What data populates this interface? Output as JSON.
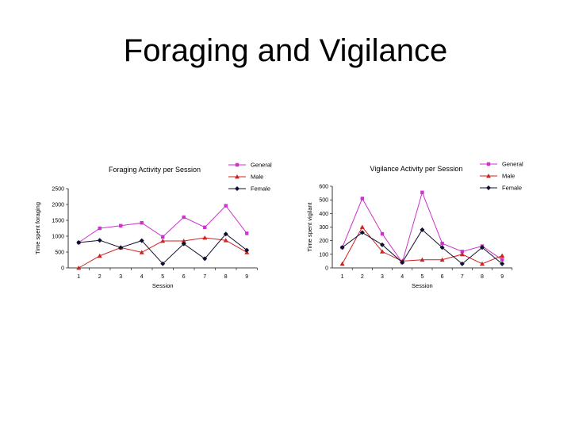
{
  "slide": {
    "title": "Foraging and Vigilance"
  },
  "chart_data": [
    {
      "type": "line",
      "title": "Foraging Activity per Session",
      "xlabel": "Session",
      "ylabel": "Time spent foraging",
      "categories": [
        "1",
        "2",
        "3",
        "4",
        "5",
        "6",
        "7",
        "8",
        "9"
      ],
      "yticks": [
        "0",
        "500",
        "1000",
        "1500",
        "2000",
        "2500"
      ],
      "ylim": [
        0,
        2500
      ],
      "legend_position": "top-right",
      "grid": false,
      "series": [
        {
          "name": "General",
          "color": "#cc33cc",
          "marker": "square",
          "values": [
            800,
            1250,
            1330,
            1420,
            980,
            1600,
            1280,
            1960,
            1090
          ]
        },
        {
          "name": "Male",
          "color": "#cc2222",
          "marker": "triangle",
          "values": [
            0,
            380,
            640,
            490,
            850,
            850,
            950,
            870,
            490
          ]
        },
        {
          "name": "Female",
          "color": "#101030",
          "marker": "diamond",
          "values": [
            800,
            870,
            640,
            860,
            130,
            760,
            290,
            1070,
            560
          ]
        }
      ]
    },
    {
      "type": "line",
      "title": "Vigilance Activity per Session",
      "xlabel": "Session",
      "ylabel": "Time spent vigilant",
      "categories": [
        "1",
        "2",
        "3",
        "4",
        "5",
        "6",
        "7",
        "8",
        "9"
      ],
      "yticks": [
        "0",
        "100",
        "200",
        "300",
        "400",
        "500",
        "600"
      ],
      "ylim": [
        0,
        600
      ],
      "legend_position": "top-right",
      "grid": false,
      "series": [
        {
          "name": "General",
          "color": "#cc33cc",
          "marker": "square",
          "values": [
            150,
            510,
            250,
            40,
            555,
            180,
            120,
            160,
            60
          ]
        },
        {
          "name": "Male",
          "color": "#cc2222",
          "marker": "triangle",
          "values": [
            30,
            300,
            120,
            50,
            60,
            60,
            100,
            30,
            90
          ]
        },
        {
          "name": "Female",
          "color": "#101030",
          "marker": "diamond",
          "values": [
            150,
            260,
            170,
            40,
            280,
            150,
            30,
            150,
            30
          ]
        }
      ]
    }
  ]
}
